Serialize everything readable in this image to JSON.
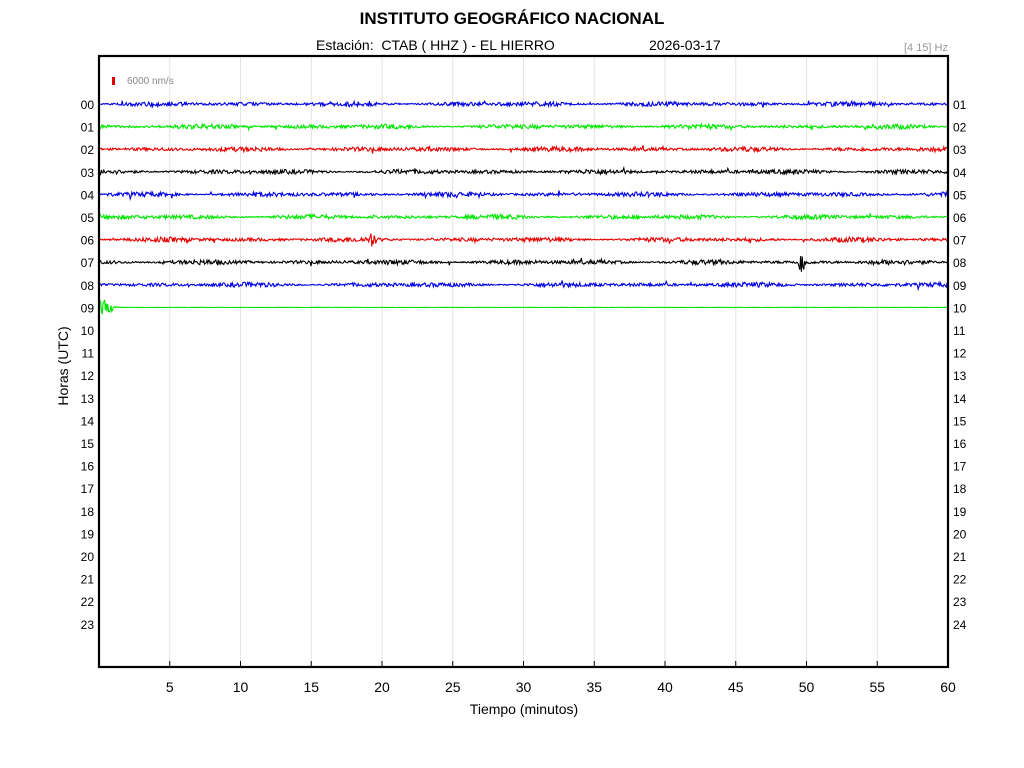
{
  "header": {
    "title": "INSTITUTO GEOGRÁFICO NACIONAL",
    "station_line": "Estación:  CTAB ( HHZ ) - EL HIERRO",
    "date": "2026-03-17",
    "band": "[4 15] Hz"
  },
  "scale": {
    "label": "6000 nm/s",
    "color": "#e00000"
  },
  "chart_data": {
    "type": "line",
    "title": "INSTITUTO GEOGRÁFICO NACIONAL",
    "xlabel": "Tiempo (minutos)",
    "ylabel": "Horas (UTC)",
    "xlim": [
      0,
      60
    ],
    "x_ticks": [
      5,
      10,
      15,
      20,
      25,
      30,
      35,
      40,
      45,
      50,
      55,
      60
    ],
    "left_hours": [
      "00",
      "01",
      "02",
      "03",
      "04",
      "05",
      "06",
      "07",
      "08",
      "09",
      "10",
      "11",
      "12",
      "13",
      "14",
      "15",
      "16",
      "17",
      "18",
      "19",
      "20",
      "21",
      "22",
      "23"
    ],
    "right_hours": [
      "01",
      "02",
      "03",
      "04",
      "05",
      "06",
      "07",
      "08",
      "09",
      "10",
      "11",
      "12",
      "13",
      "14",
      "15",
      "16",
      "17",
      "18",
      "19",
      "20",
      "21",
      "22",
      "23",
      "24"
    ],
    "grid": true,
    "color_cycle": [
      "#0000e6",
      "#00e600",
      "#e60000",
      "#000000"
    ],
    "recorded_hours": 10,
    "last_hour_recorded_minutes": 60,
    "events": [
      {
        "hour": 6,
        "minute": 19.3,
        "amplitude": "medium"
      },
      {
        "hour": 7,
        "minute": 49.7,
        "amplitude": "high"
      },
      {
        "hour": 9,
        "minute": 0.3,
        "amplitude": "medium"
      }
    ]
  }
}
